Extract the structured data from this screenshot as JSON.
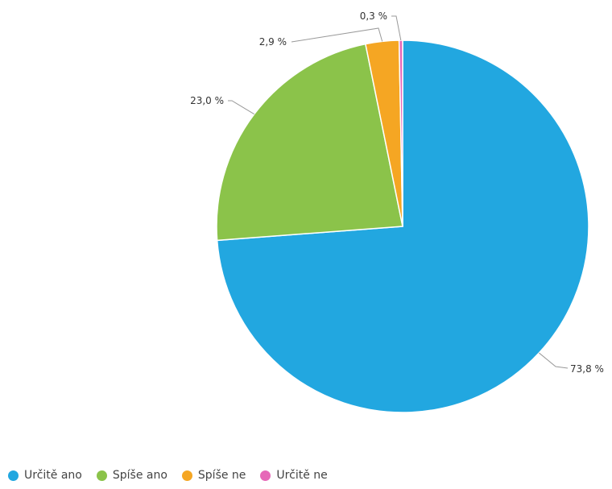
{
  "chart_data": {
    "type": "pie",
    "title": "",
    "categories": [
      "Určitě ano",
      "Spíše ano",
      "Spíše ne",
      "Určitě ne"
    ],
    "values": [
      73.8,
      23.0,
      2.9,
      0.3
    ],
    "data_labels": [
      "73,8 %",
      "23,0 %",
      "2,9 %",
      "0,3 %"
    ],
    "colors": [
      "#22a7e0",
      "#8bc34a",
      "#f5a623",
      "#e668b8"
    ],
    "legend_position": "bottom-left",
    "start_angle_deg": 0,
    "direction": "clockwise"
  }
}
